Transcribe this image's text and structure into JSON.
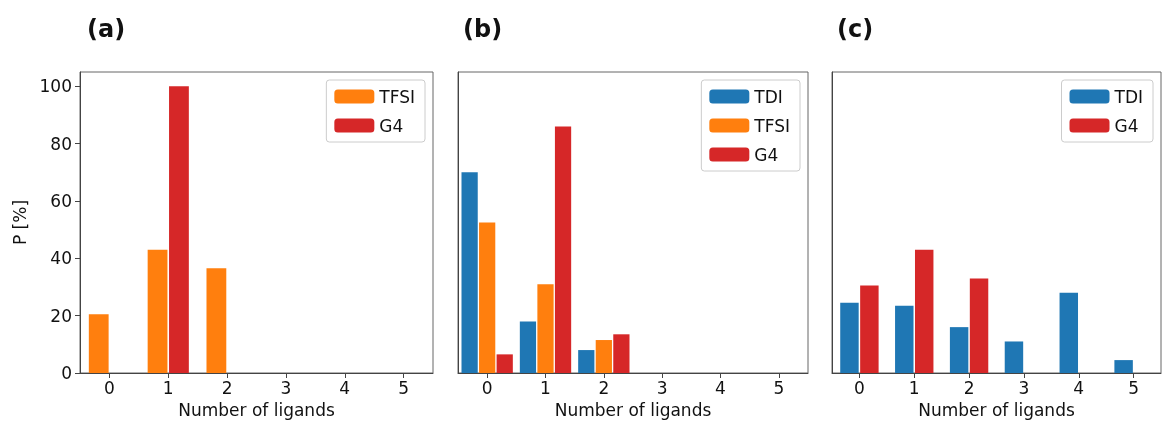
{
  "chart_data": [
    {
      "type": "bar",
      "title": "(a)",
      "xlabel": "Number of ligands",
      "ylabel": "P [%]",
      "categories": [
        "0",
        "1",
        "2",
        "3",
        "4",
        "5"
      ],
      "series": [
        {
          "name": "TFSI",
          "color": "#ff7f0e",
          "values": [
            20.5,
            43,
            36.5,
            0,
            0,
            0
          ]
        },
        {
          "name": "G4",
          "color": "#d62728",
          "values": [
            0,
            100,
            0,
            0,
            0,
            0
          ]
        }
      ],
      "ylim": [
        0,
        105
      ],
      "yticks": [
        0,
        20,
        40,
        60,
        80,
        100
      ],
      "legend": "top right",
      "grid": false
    },
    {
      "type": "bar",
      "title": "(b)",
      "xlabel": "Number of ligands",
      "categories": [
        "0",
        "1",
        "2",
        "3",
        "4",
        "5"
      ],
      "series": [
        {
          "name": "TDI",
          "color": "#1f77b4",
          "values": [
            70,
            18,
            8,
            0,
            0,
            0
          ]
        },
        {
          "name": "TFSI",
          "color": "#ff7f0e",
          "values": [
            52.5,
            31,
            11.5,
            0,
            0,
            0
          ]
        },
        {
          "name": "G4",
          "color": "#d62728",
          "values": [
            6.5,
            86,
            13.5,
            0,
            0,
            0
          ]
        }
      ],
      "ylim": [
        0,
        105
      ],
      "yticks": [
        0,
        20,
        40,
        60,
        80,
        100
      ],
      "legend": "top right",
      "grid": false,
      "tick_labels": "x"
    },
    {
      "type": "bar",
      "title": "(c)",
      "xlabel": "Number of ligands",
      "categories": [
        "0",
        "1",
        "2",
        "3",
        "4",
        "5"
      ],
      "series": [
        {
          "name": "TDI",
          "color": "#1f77b4",
          "values": [
            24.5,
            23.5,
            16,
            11,
            28,
            4.5
          ]
        },
        {
          "name": "G4",
          "color": "#d62728",
          "values": [
            30.5,
            43,
            33,
            0,
            0,
            0
          ]
        }
      ],
      "ylim": [
        0,
        105
      ],
      "yticks": [
        0,
        20,
        40,
        60,
        80,
        100
      ],
      "legend": "top right",
      "grid": false,
      "tick_labels": "x"
    }
  ]
}
